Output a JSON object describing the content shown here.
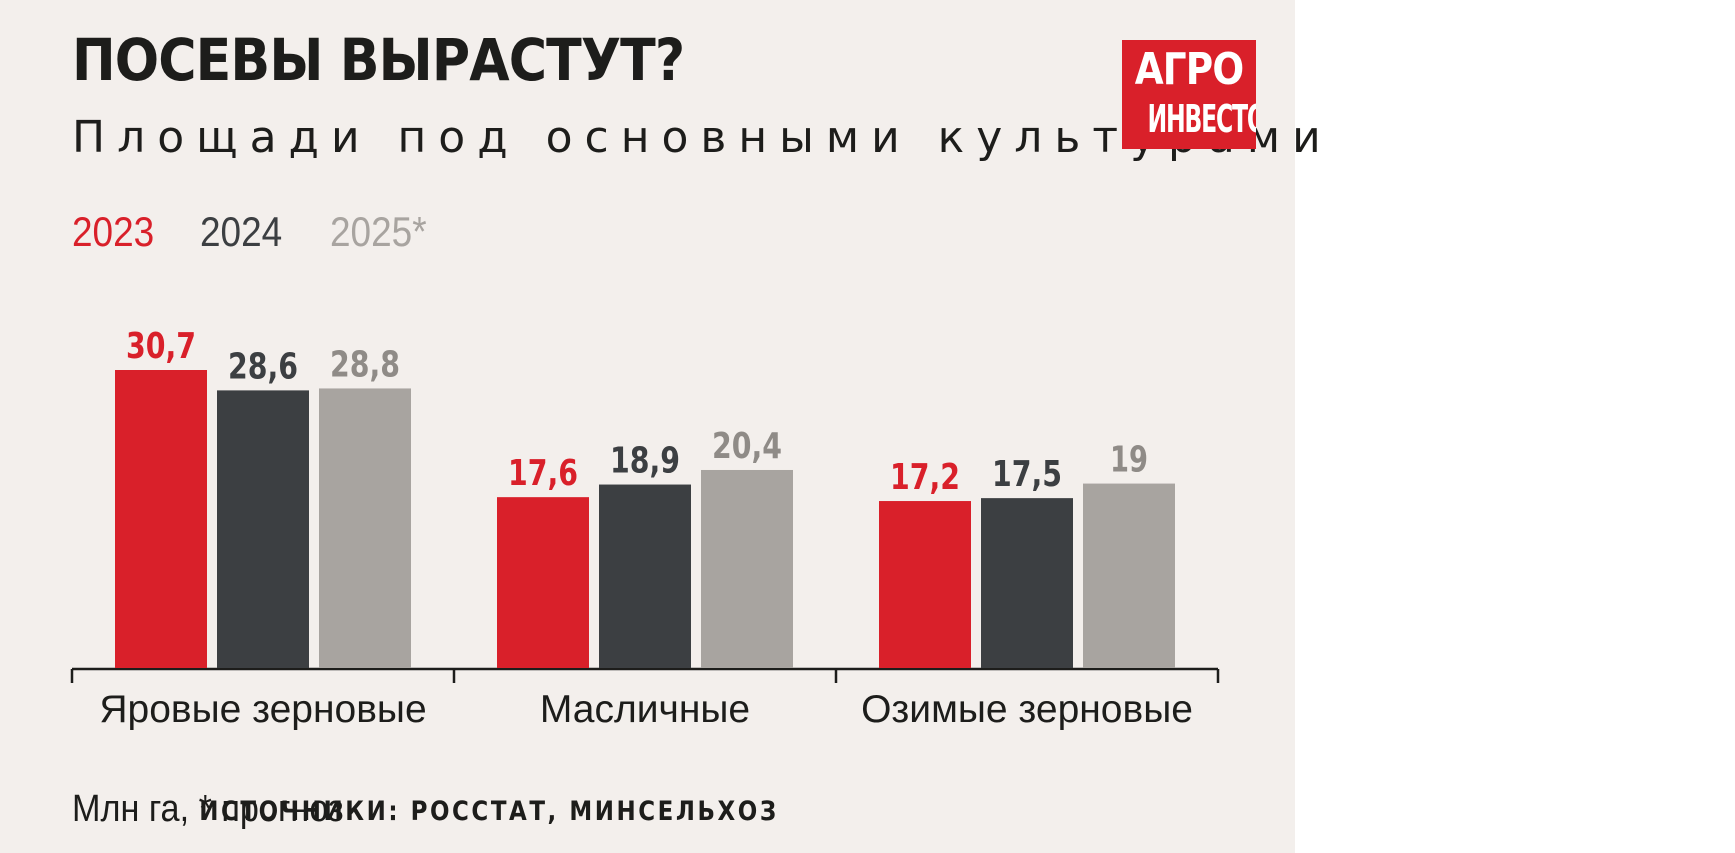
{
  "header": {
    "title": "ПОСЕВЫ ВЫРАСТУТ?",
    "subtitle": "Площади под основными культурами"
  },
  "logo": {
    "line1": "АГРО",
    "line2": "ИНВЕСТОР"
  },
  "footer": {
    "note": "Млн га, * прогноз",
    "source": "ИСТОЧНИКИ: РОССТАТ, МИНСЕЛЬХОЗ"
  },
  "colors": {
    "background": "#f3efec",
    "series_2023": "#d9202a",
    "series_2024": "#3c3f42",
    "series_2025": "#a8a4a0",
    "logo": "#d9202a"
  },
  "chart_data": {
    "type": "bar",
    "title": "ПОСЕВЫ ВЫРАСТУТ?",
    "subtitle": "Площади под основными культурами",
    "categories": [
      "Яровые зерновые",
      "Масличные",
      "Озимые зерновые"
    ],
    "series": [
      {
        "name": "2023",
        "color": "#d9202a",
        "values": [
          30.7,
          17.6,
          17.2
        ],
        "labels": [
          "30,7",
          "17,6",
          "17,2"
        ]
      },
      {
        "name": "2024",
        "color": "#3c3f42",
        "values": [
          28.6,
          18.9,
          17.5
        ],
        "labels": [
          "28,6",
          "18,9",
          "17,5"
        ]
      },
      {
        "name": "2025*",
        "color": "#a8a4a0",
        "values": [
          28.8,
          20.4,
          19
        ],
        "labels": [
          "28,8",
          "20,4",
          "19"
        ]
      }
    ],
    "ylim": [
      0,
      30.7
    ],
    "grid": false,
    "legend": "top-left",
    "xlabel": "",
    "ylabel": ""
  }
}
